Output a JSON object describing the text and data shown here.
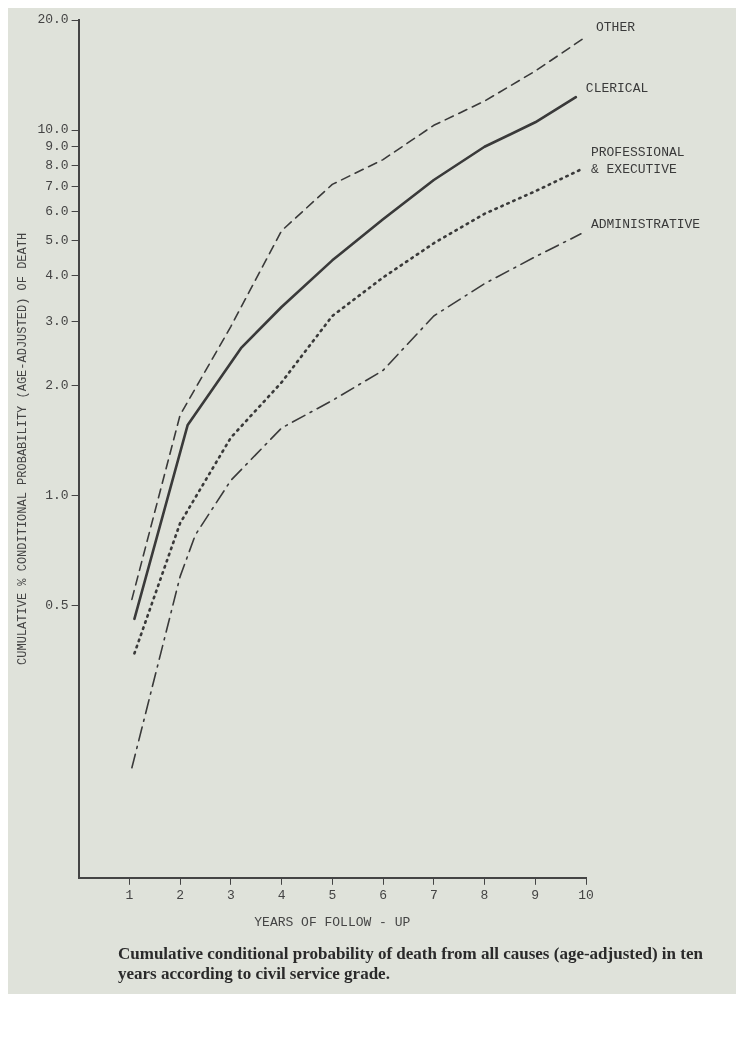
{
  "chart_data": {
    "type": "line",
    "xlabel": "YEARS OF FOLLOW - UP",
    "ylabel": "CUMULATIVE % CONDITIONAL PROBABILITY (AGE-ADJUSTED) OF DEATH",
    "annotations": [
      "Cumulative conditional probability of death from all causes (age-adjusted) in ten years according to civil service grade."
    ],
    "log": "y",
    "grid": false,
    "marker": "none",
    "xlim": [
      0,
      10
    ],
    "xticks": [
      1,
      2,
      3,
      4,
      5,
      6,
      7,
      8,
      9,
      10
    ],
    "ylim": [
      0.09,
      20
    ],
    "yticks": [
      {
        "value": 0.5,
        "label": "0.5"
      },
      {
        "value": 1,
        "label": "1.0"
      },
      {
        "value": 2,
        "label": "2.0"
      },
      {
        "value": 3,
        "label": "3.0"
      },
      {
        "value": 4,
        "label": "4.0"
      },
      {
        "value": 5,
        "label": "5.0"
      },
      {
        "value": 6,
        "label": "6.0"
      },
      {
        "value": 7,
        "label": "7.0"
      },
      {
        "value": 8,
        "label": "8.0"
      },
      {
        "value": 9,
        "label": "9.0"
      },
      {
        "value": 10,
        "label": "10.0"
      },
      {
        "value": 20,
        "label": "20.0"
      }
    ],
    "series": [
      {
        "name": "OTHER",
        "color": "#3a3a3a",
        "line_style": "dashed",
        "x": [
          1.05,
          2,
          3,
          4,
          5,
          6,
          7,
          8,
          9,
          10
        ],
        "values": [
          0.52,
          1.66,
          2.9,
          5.3,
          7.1,
          8.3,
          10.3,
          12.0,
          14.5,
          18.0
        ]
      },
      {
        "name": "CLERICAL",
        "color": "#3a3a3a",
        "line_style": "solid",
        "x": [
          1.1,
          2.15,
          3.2,
          4,
          5,
          6,
          7,
          8,
          9,
          9.8
        ],
        "values": [
          0.46,
          1.56,
          2.53,
          3.28,
          4.4,
          5.7,
          7.3,
          9.0,
          10.5,
          12.3
        ]
      },
      {
        "name": "PROFESSIONAL\n& EXECUTIVE",
        "color": "#3a3a3a",
        "line_style": "dotted",
        "x": [
          1.1,
          2,
          3,
          4,
          5,
          6,
          7,
          8,
          9,
          9.9
        ],
        "values": [
          0.37,
          0.84,
          1.44,
          2.04,
          3.1,
          3.95,
          4.9,
          5.9,
          6.8,
          7.8
        ]
      },
      {
        "name": "ADMINISTRATIVE",
        "color": "#3a3a3a",
        "line_style": "dashdot",
        "x": [
          1.05,
          2,
          2.3,
          3,
          4,
          5,
          6,
          7,
          8,
          9,
          9.9
        ],
        "values": [
          0.18,
          0.6,
          0.78,
          1.1,
          1.53,
          1.82,
          2.2,
          3.1,
          3.8,
          4.5,
          5.2
        ]
      }
    ]
  }
}
